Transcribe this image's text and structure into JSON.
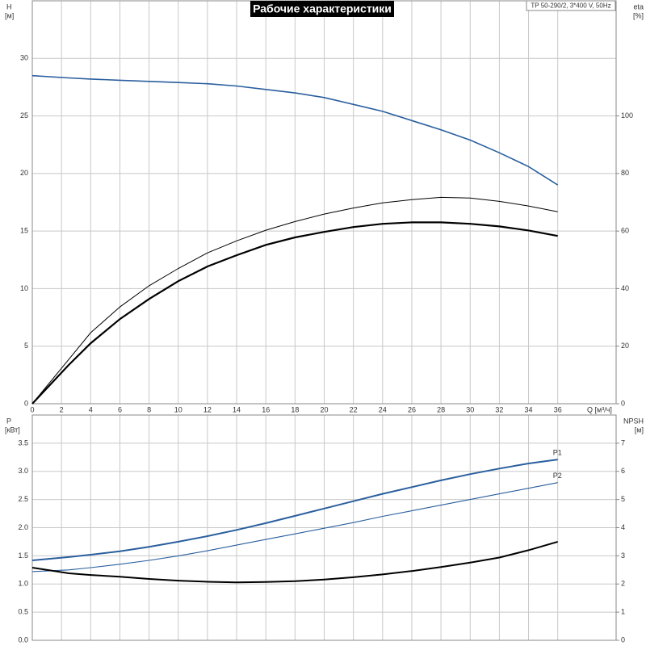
{
  "chart_data": [
    {
      "type": "line",
      "title": "Рабочие характеристики",
      "annotation": "TP 50-290/2, 3*400 V, 50Hz",
      "ylabel": "H",
      "yunit": "[м]",
      "y2label": "eta",
      "y2unit": "[%]",
      "xlabel": "Q [м³/ч]",
      "x": [
        0,
        2.5,
        4,
        6,
        8,
        10,
        12,
        14,
        16,
        18,
        20,
        22,
        24,
        26,
        28,
        30,
        32,
        34,
        36
      ],
      "xlim": [
        0,
        40
      ],
      "xticks": [
        0,
        2,
        4,
        6,
        8,
        10,
        12,
        14,
        16,
        18,
        20,
        22,
        24,
        26,
        28,
        30,
        32,
        34,
        36
      ],
      "ylim": [
        0,
        35
      ],
      "yticks": [
        0,
        5,
        10,
        15,
        20,
        25,
        30
      ],
      "y2lim": [
        0,
        140
      ],
      "y2ticks": [
        0,
        20,
        40,
        60,
        80,
        100
      ],
      "grid": true,
      "series": [
        {
          "color": "#2a5f9e",
          "width": 1.6,
          "values": [
            28.5,
            28.3,
            28.2,
            28.1,
            28.0,
            27.9,
            27.8,
            27.6,
            27.3,
            27.0,
            26.6,
            26.0,
            25.4,
            24.6,
            23.8,
            22.9,
            21.8,
            20.6,
            19.0
          ]
        },
        {
          "color": "#000000",
          "width": 2.2,
          "axis": "y2",
          "values": [
            0,
            13.5,
            21,
            29.4,
            36.4,
            42.6,
            47.7,
            51.6,
            55.2,
            57.8,
            59.7,
            61.4,
            62.5,
            63,
            63,
            62.5,
            61.6,
            60.2,
            58.3
          ]
        },
        {
          "color": "#000000",
          "width": 1,
          "axis": "y2",
          "values": [
            0,
            15.4,
            24.7,
            33.6,
            41,
            47,
            52.4,
            56.6,
            60.3,
            63.3,
            65.9,
            68,
            69.8,
            70.9,
            71.7,
            71.5,
            70.3,
            68.7,
            66.7
          ]
        }
      ]
    },
    {
      "type": "line",
      "ylabel": "P",
      "yunit": "[кВт]",
      "y2label": "NPSH",
      "y2unit": "[м]",
      "x": [
        0,
        2.5,
        4,
        6,
        8,
        10,
        12,
        14,
        16,
        18,
        20,
        22,
        24,
        26,
        28,
        30,
        32,
        34,
        36
      ],
      "xlim": [
        0,
        40
      ],
      "xticks": [
        0,
        2,
        4,
        6,
        8,
        10,
        12,
        14,
        16,
        18,
        20,
        22,
        24,
        26,
        28,
        30,
        32,
        34,
        36
      ],
      "ylim": [
        0,
        4
      ],
      "yticks": [
        {
          "value": 0,
          "label": "0.0"
        },
        {
          "value": 0.5,
          "label": "0.5"
        },
        {
          "value": 1,
          "label": "1.0"
        },
        {
          "value": 1.5,
          "label": "1.5"
        },
        {
          "value": 2,
          "label": "2.0"
        },
        {
          "value": 2.5,
          "label": "2.5"
        },
        {
          "value": 3,
          "label": "3.0"
        },
        {
          "value": 3.5,
          "label": "3.5"
        }
      ],
      "y2lim": [
        0,
        8
      ],
      "y2ticks": [
        0,
        1,
        2,
        3,
        4,
        5,
        6,
        7
      ],
      "grid": true,
      "series": [
        {
          "name": "P1",
          "color": "#2a5f9e",
          "width": 2,
          "values": [
            1.42,
            1.478,
            1.52,
            1.58,
            1.66,
            1.75,
            1.85,
            1.96,
            2.08,
            2.21,
            2.34,
            2.47,
            2.6,
            2.72,
            2.84,
            2.95,
            3.05,
            3.14,
            3.21
          ]
        },
        {
          "name": "P2",
          "color": "#2a5f9e",
          "width": 1.1,
          "values": [
            1.22,
            1.25,
            1.29,
            1.35,
            1.42,
            1.5,
            1.59,
            1.69,
            1.79,
            1.89,
            1.99,
            2.09,
            2.2,
            2.3,
            2.4,
            2.5,
            2.6,
            2.7,
            2.8
          ]
        },
        {
          "color": "#000000",
          "width": 2,
          "axis": "y2",
          "values": [
            2.58,
            2.38,
            2.32,
            2.26,
            2.18,
            2.12,
            2.08,
            2.06,
            2.07,
            2.1,
            2.16,
            2.24,
            2.34,
            2.46,
            2.6,
            2.76,
            2.94,
            3.2,
            3.5
          ]
        }
      ]
    }
  ]
}
